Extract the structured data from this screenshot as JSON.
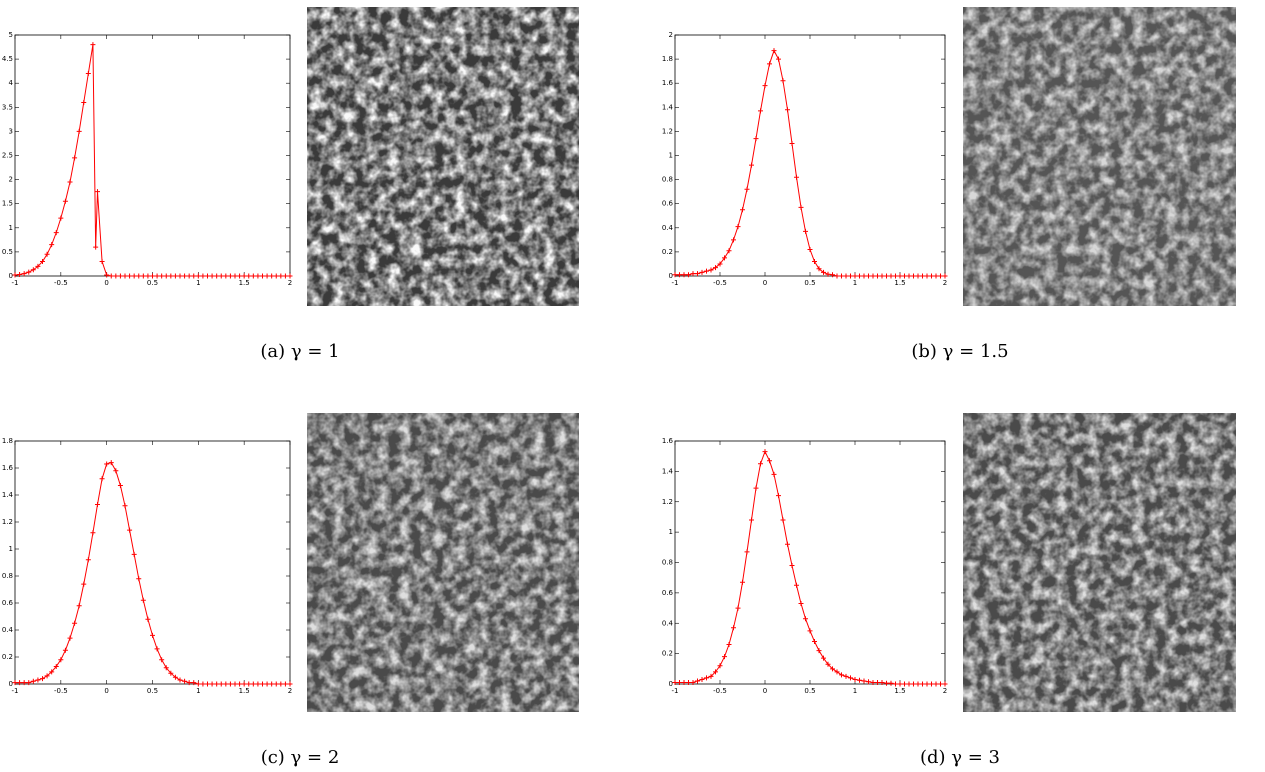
{
  "chart_data": [
    {
      "type": "line",
      "caption": "(a) γ = 1",
      "color": "#ff0000",
      "marker": "+",
      "xlim": [
        -1,
        2
      ],
      "ylim": [
        0,
        5
      ],
      "xticks": [
        -1,
        -0.5,
        0,
        0.5,
        1,
        1.5,
        2
      ],
      "yticks": [
        0,
        0.5,
        1,
        1.5,
        2,
        2.5,
        3,
        3.5,
        4,
        4.5,
        5
      ],
      "x": [
        -1,
        -0.95,
        -0.9,
        -0.85,
        -0.8,
        -0.75,
        -0.7,
        -0.65,
        -0.6,
        -0.55,
        -0.5,
        -0.45,
        -0.4,
        -0.35,
        -0.3,
        -0.25,
        -0.2,
        -0.15,
        -0.12,
        -0.1,
        -0.05,
        0,
        0.05,
        0.1,
        0.15,
        0.2,
        0.25,
        0.3,
        0.35,
        0.4,
        0.45,
        0.5,
        0.55,
        0.6,
        0.65,
        0.7,
        0.75,
        0.8,
        0.85,
        0.9,
        0.95,
        1,
        1.05,
        1.1,
        1.15,
        1.2,
        1.25,
        1.3,
        1.35,
        1.4,
        1.45,
        1.5,
        1.55,
        1.6,
        1.65,
        1.7,
        1.75,
        1.8,
        1.85,
        1.9,
        1.95,
        2
      ],
      "values": [
        0.02,
        0.03,
        0.05,
        0.08,
        0.13,
        0.2,
        0.3,
        0.45,
        0.65,
        0.9,
        1.2,
        1.55,
        1.95,
        2.45,
        3.0,
        3.6,
        4.2,
        4.8,
        0.6,
        1.75,
        0.3,
        0.02,
        0,
        0,
        0,
        0,
        0,
        0,
        0,
        0,
        0,
        0,
        0,
        0,
        0,
        0,
        0,
        0,
        0,
        0,
        0,
        0,
        0,
        0,
        0,
        0,
        0,
        0,
        0,
        0,
        0,
        0,
        0,
        0,
        0,
        0,
        0,
        0,
        0,
        0,
        0,
        0
      ]
    },
    {
      "type": "line",
      "caption": "(b) γ = 1.5",
      "color": "#ff0000",
      "marker": "+",
      "xlim": [
        -1,
        2
      ],
      "ylim": [
        0,
        2
      ],
      "xticks": [
        -1,
        -0.5,
        0,
        0.5,
        1,
        1.5,
        2
      ],
      "yticks": [
        0,
        0.2,
        0.4,
        0.6,
        0.8,
        1,
        1.2,
        1.4,
        1.6,
        1.8,
        2
      ],
      "x": [
        -1,
        -0.95,
        -0.9,
        -0.85,
        -0.8,
        -0.75,
        -0.7,
        -0.65,
        -0.6,
        -0.55,
        -0.5,
        -0.45,
        -0.4,
        -0.35,
        -0.3,
        -0.25,
        -0.2,
        -0.15,
        -0.1,
        -0.05,
        0,
        0.05,
        0.1,
        0.15,
        0.2,
        0.25,
        0.3,
        0.35,
        0.4,
        0.45,
        0.5,
        0.55,
        0.6,
        0.65,
        0.7,
        0.75,
        0.8,
        0.85,
        0.9,
        0.95,
        1,
        1.05,
        1.1,
        1.15,
        1.2,
        1.25,
        1.3,
        1.35,
        1.4,
        1.45,
        1.5,
        1.55,
        1.6,
        1.65,
        1.7,
        1.75,
        1.8,
        1.85,
        1.9,
        1.95,
        2
      ],
      "values": [
        0.01,
        0.01,
        0.01,
        0.01,
        0.02,
        0.02,
        0.03,
        0.04,
        0.05,
        0.07,
        0.1,
        0.15,
        0.21,
        0.3,
        0.41,
        0.55,
        0.72,
        0.92,
        1.14,
        1.37,
        1.58,
        1.76,
        1.87,
        1.8,
        1.62,
        1.38,
        1.1,
        0.82,
        0.57,
        0.37,
        0.22,
        0.12,
        0.06,
        0.03,
        0.015,
        0.01,
        0,
        0,
        0,
        0,
        0,
        0,
        0,
        0,
        0,
        0,
        0,
        0,
        0,
        0,
        0,
        0,
        0,
        0,
        0,
        0,
        0,
        0,
        0,
        0,
        0
      ]
    },
    {
      "type": "line",
      "caption": "(c) γ = 2",
      "color": "#ff0000",
      "marker": "+",
      "xlim": [
        -1,
        2
      ],
      "ylim": [
        0,
        1.8
      ],
      "xticks": [
        -1,
        -0.5,
        0,
        0.5,
        1,
        1.5,
        2
      ],
      "yticks": [
        0,
        0.2,
        0.4,
        0.6,
        0.8,
        1,
        1.2,
        1.4,
        1.6,
        1.8
      ],
      "x": [
        -1,
        -0.95,
        -0.9,
        -0.85,
        -0.8,
        -0.75,
        -0.7,
        -0.65,
        -0.6,
        -0.55,
        -0.5,
        -0.45,
        -0.4,
        -0.35,
        -0.3,
        -0.25,
        -0.2,
        -0.15,
        -0.1,
        -0.05,
        0,
        0.05,
        0.1,
        0.15,
        0.2,
        0.25,
        0.3,
        0.35,
        0.4,
        0.45,
        0.5,
        0.55,
        0.6,
        0.65,
        0.7,
        0.75,
        0.8,
        0.85,
        0.9,
        0.95,
        1,
        1.05,
        1.1,
        1.15,
        1.2,
        1.25,
        1.3,
        1.35,
        1.4,
        1.45,
        1.5,
        1.55,
        1.6,
        1.65,
        1.7,
        1.75,
        1.8,
        1.85,
        1.9,
        1.95,
        2
      ],
      "values": [
        0.01,
        0.01,
        0.01,
        0.01,
        0.02,
        0.03,
        0.04,
        0.06,
        0.09,
        0.13,
        0.18,
        0.25,
        0.34,
        0.45,
        0.58,
        0.74,
        0.92,
        1.12,
        1.33,
        1.52,
        1.63,
        1.64,
        1.58,
        1.47,
        1.32,
        1.14,
        0.96,
        0.78,
        0.62,
        0.48,
        0.36,
        0.26,
        0.18,
        0.12,
        0.08,
        0.05,
        0.03,
        0.02,
        0.01,
        0.01,
        0,
        0,
        0,
        0,
        0,
        0,
        0,
        0,
        0,
        0,
        0,
        0,
        0,
        0,
        0,
        0,
        0,
        0,
        0,
        0,
        0
      ]
    },
    {
      "type": "line",
      "caption": "(d) γ = 3",
      "color": "#ff0000",
      "marker": "+",
      "xlim": [
        -1,
        2
      ],
      "ylim": [
        0,
        1.6
      ],
      "xticks": [
        -1,
        -0.5,
        0,
        0.5,
        1,
        1.5,
        2
      ],
      "yticks": [
        0,
        0.2,
        0.4,
        0.6,
        0.8,
        1,
        1.2,
        1.4,
        1.6
      ],
      "x": [
        -1,
        -0.95,
        -0.9,
        -0.85,
        -0.8,
        -0.75,
        -0.7,
        -0.65,
        -0.6,
        -0.55,
        -0.5,
        -0.45,
        -0.4,
        -0.35,
        -0.3,
        -0.25,
        -0.2,
        -0.15,
        -0.1,
        -0.05,
        0,
        0.05,
        0.1,
        0.15,
        0.2,
        0.25,
        0.3,
        0.35,
        0.4,
        0.45,
        0.5,
        0.55,
        0.6,
        0.65,
        0.7,
        0.75,
        0.8,
        0.85,
        0.9,
        0.95,
        1,
        1.05,
        1.1,
        1.15,
        1.2,
        1.25,
        1.3,
        1.35,
        1.4,
        1.45,
        1.5,
        1.55,
        1.6,
        1.65,
        1.7,
        1.75,
        1.8,
        1.85,
        1.9,
        1.95,
        2
      ],
      "values": [
        0.01,
        0.01,
        0.01,
        0.01,
        0.01,
        0.02,
        0.03,
        0.04,
        0.05,
        0.08,
        0.12,
        0.18,
        0.26,
        0.37,
        0.5,
        0.67,
        0.87,
        1.08,
        1.29,
        1.45,
        1.53,
        1.47,
        1.38,
        1.24,
        1.08,
        0.92,
        0.78,
        0.65,
        0.53,
        0.43,
        0.35,
        0.28,
        0.22,
        0.17,
        0.13,
        0.1,
        0.08,
        0.06,
        0.05,
        0.04,
        0.03,
        0.025,
        0.02,
        0.015,
        0.01,
        0.01,
        0.01,
        0.005,
        0.005,
        0,
        0,
        0,
        0,
        0,
        0,
        0,
        0,
        0,
        0,
        0,
        0
      ]
    }
  ]
}
